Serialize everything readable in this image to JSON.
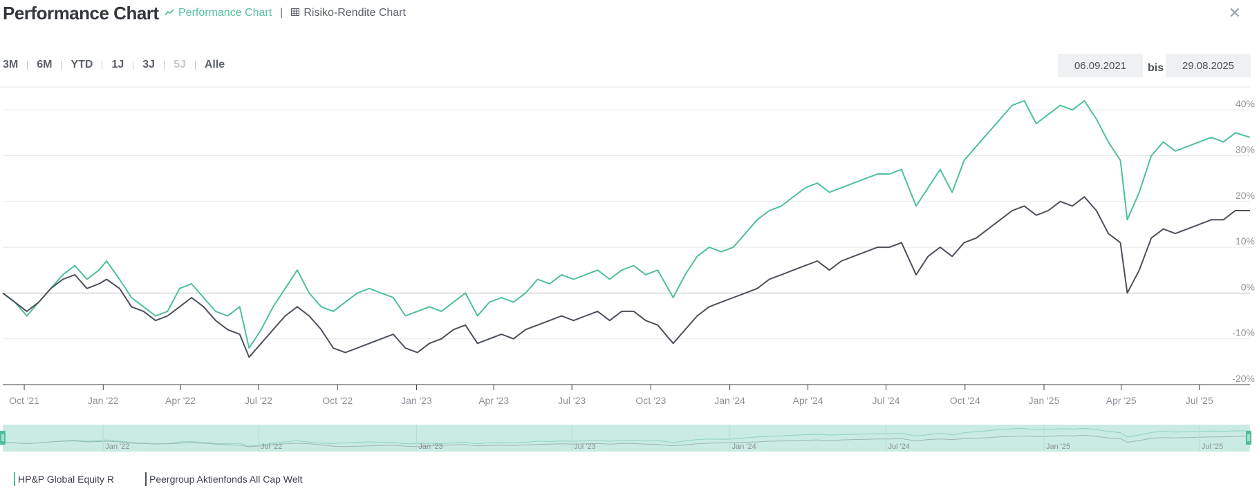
{
  "header": {
    "title": "Performance Chart",
    "tab_performance": "Performance Chart",
    "tab_risk": "Risiko-Rendite Chart",
    "close_icon": "close-icon"
  },
  "ranges": [
    "3M",
    "6M",
    "YTD",
    "1J",
    "3J",
    "5J",
    "Alle"
  ],
  "disabled_ranges": [
    "5J"
  ],
  "dates": {
    "from": "06.09.2021",
    "bis": "bis",
    "to": "29.08.2025"
  },
  "colors": {
    "fund": "#4dbf9d",
    "peer": "#4b4f5b",
    "navigator": "#c9ebe2"
  },
  "chart_data": {
    "type": "line",
    "title": "",
    "xlabel": "",
    "ylabel": "",
    "ylim": [
      -20,
      45
    ],
    "yticks": [
      -20,
      -10,
      0,
      10,
      20,
      30,
      40
    ],
    "ytick_labels": [
      "-20%",
      "-10%",
      "0%",
      "10%",
      "20%",
      "30%",
      "40%"
    ],
    "xtick_labels": [
      "Oct '21",
      "Jan '22",
      "Apr '22",
      "Jul '22",
      "Oct '22",
      "Jan '23",
      "Apr '23",
      "Jul '23",
      "Oct '23",
      "Jan '24",
      "Apr '24",
      "Jul '24",
      "Oct '24",
      "Jan '25",
      "Apr '25",
      "Jul '25"
    ],
    "xtick_dates": [
      "2021-10-01",
      "2022-01-01",
      "2022-04-01",
      "2022-07-01",
      "2022-10-01",
      "2023-01-01",
      "2023-04-01",
      "2023-07-01",
      "2023-10-01",
      "2024-01-01",
      "2024-04-01",
      "2024-07-01",
      "2024-10-01",
      "2025-01-01",
      "2025-04-01",
      "2025-07-01"
    ],
    "navigator_labels": [
      "Jan '22",
      "Jul '22",
      "Jan '23",
      "Jul '23",
      "Jan '24",
      "Jul '24",
      "Jan '25",
      "Jul '25"
    ],
    "navigator_dates": [
      "2022-01-01",
      "2022-07-01",
      "2023-01-01",
      "2023-07-01",
      "2024-01-01",
      "2024-07-01",
      "2025-01-01",
      "2025-07-01"
    ],
    "grid": true,
    "legend_position": "bottom-left",
    "series": [
      {
        "name": "HP&P Global Equity R",
        "points": [
          [
            "2021-09-06",
            0
          ],
          [
            "2021-09-20",
            -2
          ],
          [
            "2021-10-04",
            -5
          ],
          [
            "2021-10-18",
            -2
          ],
          [
            "2021-11-01",
            1
          ],
          [
            "2021-11-15",
            4
          ],
          [
            "2021-11-29",
            6
          ],
          [
            "2021-12-13",
            3
          ],
          [
            "2021-12-27",
            5
          ],
          [
            "2022-01-05",
            7
          ],
          [
            "2022-01-20",
            3
          ],
          [
            "2022-02-03",
            -1
          ],
          [
            "2022-02-17",
            -3
          ],
          [
            "2022-03-03",
            -5
          ],
          [
            "2022-03-17",
            -4
          ],
          [
            "2022-03-31",
            1
          ],
          [
            "2022-04-14",
            2
          ],
          [
            "2022-04-28",
            -1
          ],
          [
            "2022-05-12",
            -4
          ],
          [
            "2022-05-26",
            -5
          ],
          [
            "2022-06-09",
            -3
          ],
          [
            "2022-06-20",
            -12
          ],
          [
            "2022-07-04",
            -8
          ],
          [
            "2022-07-18",
            -3
          ],
          [
            "2022-08-01",
            1
          ],
          [
            "2022-08-15",
            5
          ],
          [
            "2022-08-29",
            0
          ],
          [
            "2022-09-12",
            -3
          ],
          [
            "2022-09-26",
            -4
          ],
          [
            "2022-10-10",
            -2
          ],
          [
            "2022-10-24",
            0
          ],
          [
            "2022-11-07",
            1
          ],
          [
            "2022-11-21",
            0
          ],
          [
            "2022-12-05",
            -1
          ],
          [
            "2022-12-19",
            -5
          ],
          [
            "2023-01-02",
            -4
          ],
          [
            "2023-01-16",
            -3
          ],
          [
            "2023-01-30",
            -4
          ],
          [
            "2023-02-13",
            -2
          ],
          [
            "2023-02-27",
            0
          ],
          [
            "2023-03-13",
            -5
          ],
          [
            "2023-03-27",
            -2
          ],
          [
            "2023-04-10",
            -1
          ],
          [
            "2023-04-24",
            -2
          ],
          [
            "2023-05-08",
            0
          ],
          [
            "2023-05-22",
            3
          ],
          [
            "2023-06-05",
            2
          ],
          [
            "2023-06-19",
            4
          ],
          [
            "2023-07-03",
            3
          ],
          [
            "2023-07-17",
            4
          ],
          [
            "2023-07-31",
            5
          ],
          [
            "2023-08-14",
            3
          ],
          [
            "2023-08-28",
            5
          ],
          [
            "2023-09-11",
            6
          ],
          [
            "2023-09-25",
            4
          ],
          [
            "2023-10-09",
            5
          ],
          [
            "2023-10-27",
            -1
          ],
          [
            "2023-11-10",
            4
          ],
          [
            "2023-11-24",
            8
          ],
          [
            "2023-12-08",
            10
          ],
          [
            "2023-12-22",
            9
          ],
          [
            "2024-01-05",
            10
          ],
          [
            "2024-01-19",
            13
          ],
          [
            "2024-02-02",
            16
          ],
          [
            "2024-02-16",
            18
          ],
          [
            "2024-03-01",
            19
          ],
          [
            "2024-03-15",
            21
          ],
          [
            "2024-03-29",
            23
          ],
          [
            "2024-04-12",
            24
          ],
          [
            "2024-04-26",
            22
          ],
          [
            "2024-05-10",
            23
          ],
          [
            "2024-05-24",
            24
          ],
          [
            "2024-06-07",
            25
          ],
          [
            "2024-06-21",
            26
          ],
          [
            "2024-07-05",
            26
          ],
          [
            "2024-07-19",
            27
          ],
          [
            "2024-08-05",
            19
          ],
          [
            "2024-08-19",
            23
          ],
          [
            "2024-09-02",
            27
          ],
          [
            "2024-09-16",
            22
          ],
          [
            "2024-09-30",
            29
          ],
          [
            "2024-10-14",
            32
          ],
          [
            "2024-10-28",
            35
          ],
          [
            "2024-11-11",
            38
          ],
          [
            "2024-11-25",
            41
          ],
          [
            "2024-12-09",
            42
          ],
          [
            "2024-12-23",
            37
          ],
          [
            "2025-01-06",
            39
          ],
          [
            "2025-01-20",
            41
          ],
          [
            "2025-02-03",
            40
          ],
          [
            "2025-02-17",
            42
          ],
          [
            "2025-03-03",
            38
          ],
          [
            "2025-03-17",
            33
          ],
          [
            "2025-03-31",
            29
          ],
          [
            "2025-04-08",
            16
          ],
          [
            "2025-04-22",
            22
          ],
          [
            "2025-05-06",
            30
          ],
          [
            "2025-05-20",
            33
          ],
          [
            "2025-06-03",
            31
          ],
          [
            "2025-06-17",
            32
          ],
          [
            "2025-07-01",
            33
          ],
          [
            "2025-07-15",
            34
          ],
          [
            "2025-07-29",
            33
          ],
          [
            "2025-08-12",
            35
          ],
          [
            "2025-08-29",
            34
          ]
        ]
      },
      {
        "name": "Peergroup Aktienfonds All Cap Welt",
        "points": [
          [
            "2021-09-06",
            0
          ],
          [
            "2021-09-20",
            -2
          ],
          [
            "2021-10-04",
            -4
          ],
          [
            "2021-10-18",
            -2
          ],
          [
            "2021-11-01",
            1
          ],
          [
            "2021-11-15",
            3
          ],
          [
            "2021-11-29",
            4
          ],
          [
            "2021-12-13",
            1
          ],
          [
            "2021-12-27",
            2
          ],
          [
            "2022-01-05",
            3
          ],
          [
            "2022-01-20",
            1
          ],
          [
            "2022-02-03",
            -3
          ],
          [
            "2022-02-17",
            -4
          ],
          [
            "2022-03-03",
            -6
          ],
          [
            "2022-03-17",
            -5
          ],
          [
            "2022-03-31",
            -3
          ],
          [
            "2022-04-14",
            -1
          ],
          [
            "2022-04-28",
            -3
          ],
          [
            "2022-05-12",
            -6
          ],
          [
            "2022-05-26",
            -8
          ],
          [
            "2022-06-09",
            -9
          ],
          [
            "2022-06-20",
            -14
          ],
          [
            "2022-07-04",
            -11
          ],
          [
            "2022-07-18",
            -8
          ],
          [
            "2022-08-01",
            -5
          ],
          [
            "2022-08-15",
            -3
          ],
          [
            "2022-08-29",
            -5
          ],
          [
            "2022-09-12",
            -8
          ],
          [
            "2022-09-26",
            -12
          ],
          [
            "2022-10-10",
            -13
          ],
          [
            "2022-10-24",
            -12
          ],
          [
            "2022-11-07",
            -11
          ],
          [
            "2022-11-21",
            -10
          ],
          [
            "2022-12-05",
            -9
          ],
          [
            "2022-12-19",
            -12
          ],
          [
            "2023-01-02",
            -13
          ],
          [
            "2023-01-16",
            -11
          ],
          [
            "2023-01-30",
            -10
          ],
          [
            "2023-02-13",
            -8
          ],
          [
            "2023-02-27",
            -7
          ],
          [
            "2023-03-13",
            -11
          ],
          [
            "2023-03-27",
            -10
          ],
          [
            "2023-04-10",
            -9
          ],
          [
            "2023-04-24",
            -10
          ],
          [
            "2023-05-08",
            -8
          ],
          [
            "2023-05-22",
            -7
          ],
          [
            "2023-06-05",
            -6
          ],
          [
            "2023-06-19",
            -5
          ],
          [
            "2023-07-03",
            -6
          ],
          [
            "2023-07-17",
            -5
          ],
          [
            "2023-07-31",
            -4
          ],
          [
            "2023-08-14",
            -6
          ],
          [
            "2023-08-28",
            -4
          ],
          [
            "2023-09-11",
            -4
          ],
          [
            "2023-09-25",
            -6
          ],
          [
            "2023-10-09",
            -7
          ],
          [
            "2023-10-27",
            -11
          ],
          [
            "2023-11-10",
            -8
          ],
          [
            "2023-11-24",
            -5
          ],
          [
            "2023-12-08",
            -3
          ],
          [
            "2023-12-22",
            -2
          ],
          [
            "2024-01-05",
            -1
          ],
          [
            "2024-01-19",
            0
          ],
          [
            "2024-02-02",
            1
          ],
          [
            "2024-02-16",
            3
          ],
          [
            "2024-03-01",
            4
          ],
          [
            "2024-03-15",
            5
          ],
          [
            "2024-03-29",
            6
          ],
          [
            "2024-04-12",
            7
          ],
          [
            "2024-04-26",
            5
          ],
          [
            "2024-05-10",
            7
          ],
          [
            "2024-05-24",
            8
          ],
          [
            "2024-06-07",
            9
          ],
          [
            "2024-06-21",
            10
          ],
          [
            "2024-07-05",
            10
          ],
          [
            "2024-07-19",
            11
          ],
          [
            "2024-08-05",
            4
          ],
          [
            "2024-08-19",
            8
          ],
          [
            "2024-09-02",
            10
          ],
          [
            "2024-09-16",
            8
          ],
          [
            "2024-09-30",
            11
          ],
          [
            "2024-10-14",
            12
          ],
          [
            "2024-10-28",
            14
          ],
          [
            "2024-11-11",
            16
          ],
          [
            "2024-11-25",
            18
          ],
          [
            "2024-12-09",
            19
          ],
          [
            "2024-12-23",
            17
          ],
          [
            "2025-01-06",
            18
          ],
          [
            "2025-01-20",
            20
          ],
          [
            "2025-02-03",
            19
          ],
          [
            "2025-02-17",
            21
          ],
          [
            "2025-03-03",
            18
          ],
          [
            "2025-03-17",
            13
          ],
          [
            "2025-03-31",
            11
          ],
          [
            "2025-04-08",
            0
          ],
          [
            "2025-04-22",
            5
          ],
          [
            "2025-05-06",
            12
          ],
          [
            "2025-05-20",
            14
          ],
          [
            "2025-06-03",
            13
          ],
          [
            "2025-06-17",
            14
          ],
          [
            "2025-07-01",
            15
          ],
          [
            "2025-07-15",
            16
          ],
          [
            "2025-07-29",
            16
          ],
          [
            "2025-08-12",
            18
          ],
          [
            "2025-08-29",
            18
          ]
        ]
      }
    ]
  }
}
